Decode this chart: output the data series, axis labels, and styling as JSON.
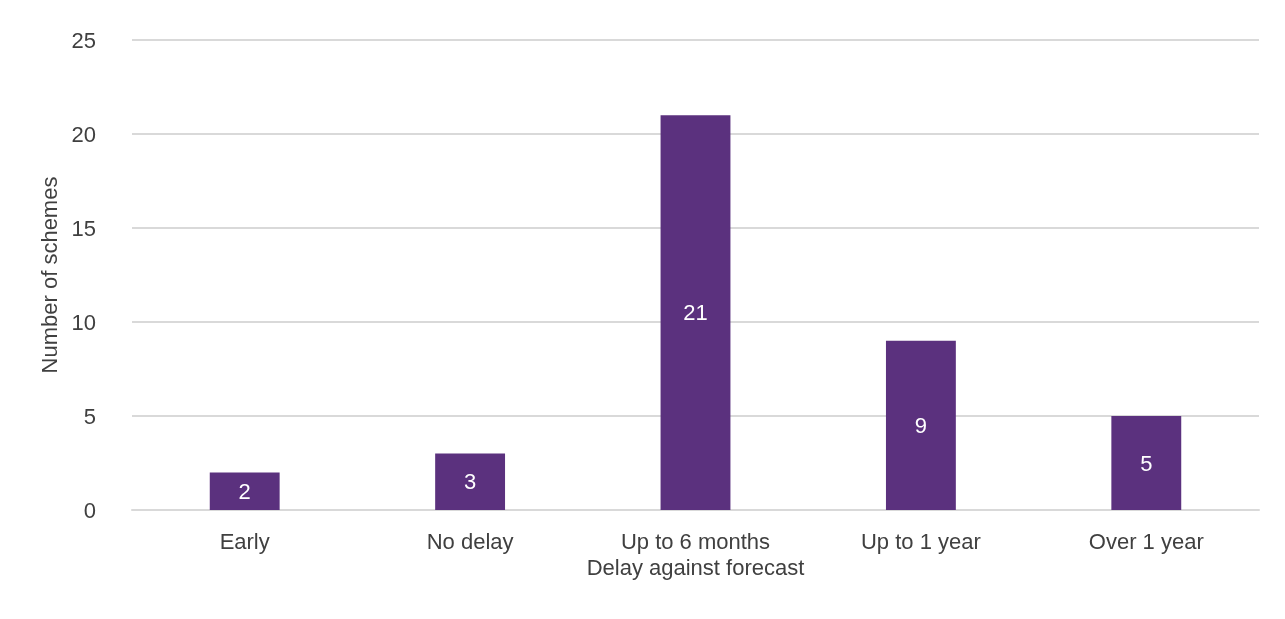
{
  "chart_data": {
    "type": "bar",
    "xlabel": "Delay against forecast",
    "ylabel": "Number of schemes",
    "categories": [
      "Early",
      "No delay",
      "Up to 6 months",
      "Up to 1 year",
      "Over 1 year"
    ],
    "values": [
      2,
      3,
      21,
      9,
      5
    ],
    "color": "#5b317e",
    "ylim": [
      0,
      25
    ],
    "yticks": [
      0,
      5,
      10,
      15,
      20,
      25
    ],
    "grid": "y",
    "data_labels": true
  }
}
